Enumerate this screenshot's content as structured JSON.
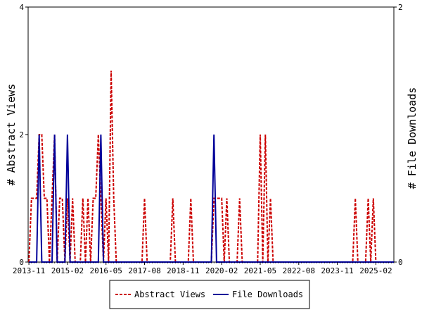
{
  "chart_data": {
    "type": "line",
    "ylabel_left": "# Abstract Views",
    "ylabel_right": "# File Downloads",
    "ylim_left": [
      0,
      4
    ],
    "ylim_right": [
      0,
      2
    ],
    "y_ticks_left": [
      0,
      2,
      4
    ],
    "y_ticks_right": [
      0,
      2
    ],
    "x_range": [
      "2013-11",
      "2025-09"
    ],
    "x_ticks": [
      "2013-11",
      "2015-02",
      "2016-05",
      "2017-08",
      "2018-11",
      "2020-02",
      "2021-05",
      "2022-08",
      "2023-11",
      "2025-02"
    ],
    "grid": false,
    "legend_position": "bottom",
    "series": [
      {
        "name": "Abstract Views",
        "axis": "left",
        "color": "#cc0000",
        "style": "dashed",
        "points": [
          [
            "2013-11",
            0
          ],
          [
            "2013-12",
            1
          ],
          [
            "2014-01",
            1
          ],
          [
            "2014-02",
            1
          ],
          [
            "2014-03",
            2
          ],
          [
            "2014-04",
            2
          ],
          [
            "2014-05",
            1
          ],
          [
            "2014-06",
            1
          ],
          [
            "2014-07",
            0
          ],
          [
            "2014-08",
            1
          ],
          [
            "2014-09",
            2
          ],
          [
            "2014-10",
            0
          ],
          [
            "2014-11",
            1
          ],
          [
            "2014-12",
            1
          ],
          [
            "2015-01",
            0
          ],
          [
            "2015-02",
            1
          ],
          [
            "2015-03",
            0
          ],
          [
            "2015-04",
            1
          ],
          [
            "2015-05",
            0
          ],
          [
            "2015-06",
            0
          ],
          [
            "2015-07",
            0
          ],
          [
            "2015-08",
            1
          ],
          [
            "2015-09",
            0
          ],
          [
            "2015-10",
            1
          ],
          [
            "2015-11",
            0
          ],
          [
            "2015-12",
            1
          ],
          [
            "2016-01",
            1
          ],
          [
            "2016-02",
            2
          ],
          [
            "2016-03",
            1
          ],
          [
            "2016-04",
            0
          ],
          [
            "2016-05",
            1
          ],
          [
            "2016-06",
            0
          ],
          [
            "2016-07",
            3
          ],
          [
            "2016-08",
            1
          ],
          [
            "2016-09",
            0
          ],
          [
            "2017-07",
            0
          ],
          [
            "2017-08",
            1
          ],
          [
            "2017-09",
            0
          ],
          [
            "2018-06",
            0
          ],
          [
            "2018-07",
            1
          ],
          [
            "2018-08",
            0
          ],
          [
            "2019-01",
            0
          ],
          [
            "2019-02",
            1
          ],
          [
            "2019-03",
            0
          ],
          [
            "2019-10",
            0
          ],
          [
            "2019-11",
            1
          ],
          [
            "2019-12",
            1
          ],
          [
            "2020-01",
            1
          ],
          [
            "2020-02",
            1
          ],
          [
            "2020-03",
            0
          ],
          [
            "2020-04",
            1
          ],
          [
            "2020-05",
            0
          ],
          [
            "2020-08",
            0
          ],
          [
            "2020-09",
            1
          ],
          [
            "2020-10",
            0
          ],
          [
            "2021-04",
            0
          ],
          [
            "2021-05",
            2
          ],
          [
            "2021-06",
            0
          ],
          [
            "2021-07",
            2
          ],
          [
            "2021-08",
            0
          ],
          [
            "2021-09",
            1
          ],
          [
            "2021-10",
            0
          ],
          [
            "2024-05",
            0
          ],
          [
            "2024-06",
            1
          ],
          [
            "2024-07",
            0
          ],
          [
            "2024-10",
            0
          ],
          [
            "2024-11",
            1
          ],
          [
            "2024-12",
            0
          ],
          [
            "2025-01",
            1
          ],
          [
            "2025-02",
            0
          ],
          [
            "2025-09",
            0
          ]
        ]
      },
      {
        "name": "File Downloads",
        "axis": "right",
        "color": "#000099",
        "style": "solid",
        "points": [
          [
            "2013-11",
            0
          ],
          [
            "2014-02",
            0
          ],
          [
            "2014-03",
            1
          ],
          [
            "2014-04",
            0
          ],
          [
            "2014-08",
            0
          ],
          [
            "2014-09",
            1
          ],
          [
            "2014-10",
            0
          ],
          [
            "2015-01",
            0
          ],
          [
            "2015-02",
            1
          ],
          [
            "2015-03",
            0
          ],
          [
            "2016-02",
            0
          ],
          [
            "2016-03",
            1
          ],
          [
            "2016-04",
            0
          ],
          [
            "2019-10",
            0
          ],
          [
            "2019-11",
            1
          ],
          [
            "2019-12",
            0
          ],
          [
            "2025-09",
            0
          ]
        ]
      }
    ]
  }
}
